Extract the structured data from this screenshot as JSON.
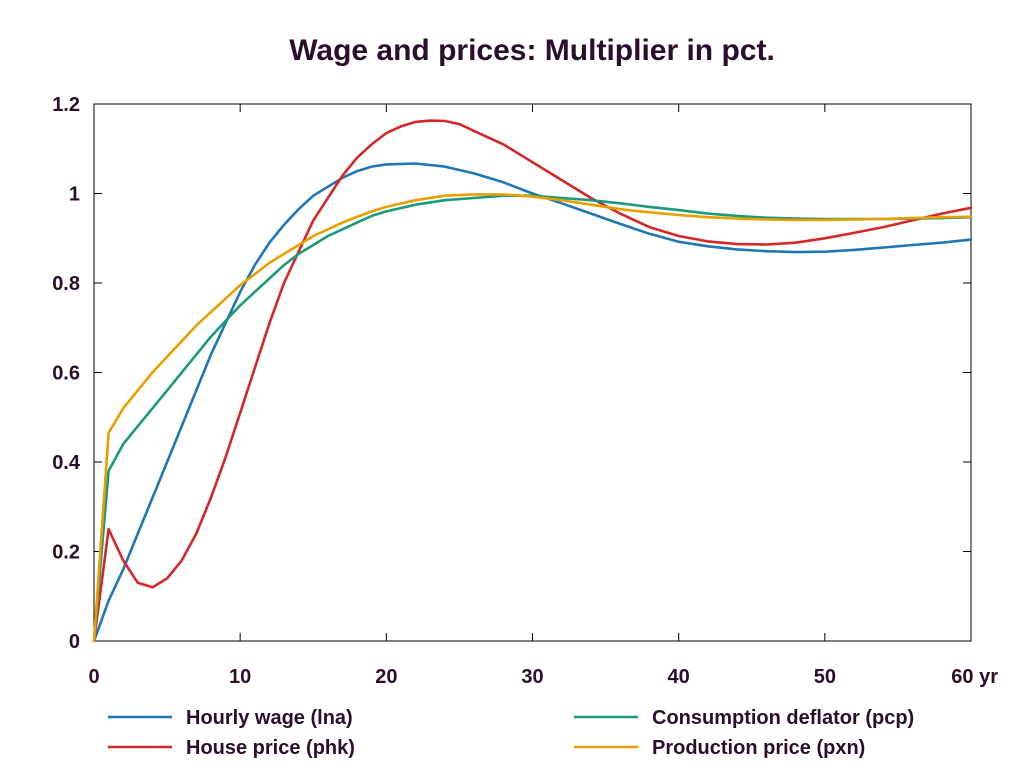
{
  "chart_data": {
    "type": "line",
    "title": "Wage and prices: Multiplier in pct.",
    "xlabel": "",
    "ylabel": "",
    "xlim": [
      0,
      60
    ],
    "ylim": [
      0,
      1.2
    ],
    "x_ticks": [
      {
        "value": 0,
        "label": "0"
      },
      {
        "value": 10,
        "label": "10"
      },
      {
        "value": 20,
        "label": "20"
      },
      {
        "value": 30,
        "label": "30"
      },
      {
        "value": 40,
        "label": "40"
      },
      {
        "value": 50,
        "label": "50"
      },
      {
        "value": 60,
        "label": "60 yr"
      }
    ],
    "y_ticks": [
      {
        "value": 0,
        "label": "0"
      },
      {
        "value": 0.2,
        "label": "0.2"
      },
      {
        "value": 0.4,
        "label": "0.4"
      },
      {
        "value": 0.6,
        "label": "0.6"
      },
      {
        "value": 0.8,
        "label": "0.8"
      },
      {
        "value": 1.0,
        "label": "1"
      },
      {
        "value": 1.2,
        "label": "1.2"
      }
    ],
    "grid": false,
    "legend": "bottom",
    "series": [
      {
        "name": "Hourly wage (lna)",
        "color": "#1f77b4",
        "x": [
          0,
          1,
          2,
          3,
          4,
          5,
          6,
          7,
          8,
          9,
          10,
          11,
          12,
          13,
          14,
          15,
          16,
          17,
          18,
          19,
          20,
          22,
          24,
          26,
          28,
          30,
          32,
          34,
          36,
          38,
          40,
          42,
          44,
          46,
          48,
          50,
          52,
          54,
          56,
          58,
          60
        ],
        "values": [
          0,
          0.09,
          0.16,
          0.24,
          0.32,
          0.4,
          0.48,
          0.56,
          0.64,
          0.71,
          0.78,
          0.84,
          0.89,
          0.93,
          0.965,
          0.995,
          1.015,
          1.035,
          1.05,
          1.06,
          1.065,
          1.067,
          1.06,
          1.045,
          1.025,
          1.0,
          0.978,
          0.955,
          0.932,
          0.91,
          0.892,
          0.882,
          0.875,
          0.871,
          0.869,
          0.87,
          0.874,
          0.879,
          0.885,
          0.89,
          0.897
        ]
      },
      {
        "name": "House price (phk)",
        "color": "#d62728",
        "x": [
          0,
          1,
          2,
          3,
          4,
          5,
          6,
          7,
          8,
          9,
          10,
          11,
          12,
          13,
          14,
          15,
          16,
          17,
          18,
          19,
          20,
          21,
          22,
          23,
          24,
          25,
          26,
          28,
          30,
          32,
          34,
          36,
          38,
          40,
          42,
          44,
          46,
          48,
          50,
          52,
          54,
          56,
          58,
          60
        ],
        "values": [
          0,
          0.25,
          0.18,
          0.13,
          0.12,
          0.14,
          0.18,
          0.24,
          0.32,
          0.41,
          0.51,
          0.61,
          0.71,
          0.8,
          0.87,
          0.94,
          0.99,
          1.04,
          1.08,
          1.11,
          1.135,
          1.15,
          1.16,
          1.163,
          1.162,
          1.155,
          1.14,
          1.11,
          1.07,
          1.03,
          0.99,
          0.955,
          0.925,
          0.905,
          0.893,
          0.887,
          0.886,
          0.89,
          0.9,
          0.912,
          0.925,
          0.94,
          0.955,
          0.968
        ]
      },
      {
        "name": "Consumption deflator (pcp)",
        "color": "#1a9a7a",
        "x": [
          0,
          1,
          2,
          3,
          4,
          5,
          6,
          7,
          8,
          9,
          10,
          11,
          12,
          13,
          14,
          15,
          16,
          17,
          18,
          19,
          20,
          22,
          24,
          26,
          28,
          30,
          32,
          34,
          36,
          38,
          40,
          42,
          44,
          46,
          48,
          50,
          52,
          54,
          56,
          58,
          60
        ],
        "values": [
          0,
          0.38,
          0.44,
          0.48,
          0.52,
          0.56,
          0.6,
          0.64,
          0.68,
          0.715,
          0.75,
          0.78,
          0.81,
          0.84,
          0.865,
          0.885,
          0.905,
          0.92,
          0.935,
          0.95,
          0.96,
          0.975,
          0.985,
          0.99,
          0.995,
          0.995,
          0.99,
          0.985,
          0.978,
          0.97,
          0.963,
          0.955,
          0.95,
          0.946,
          0.944,
          0.943,
          0.943,
          0.943,
          0.944,
          0.945,
          0.947
        ]
      },
      {
        "name": "Production price (pxn)",
        "color": "#e8a000",
        "x": [
          0,
          1,
          2,
          3,
          4,
          5,
          6,
          7,
          8,
          9,
          10,
          11,
          12,
          13,
          14,
          15,
          16,
          17,
          18,
          19,
          20,
          22,
          24,
          26,
          28,
          30,
          32,
          34,
          36,
          38,
          40,
          42,
          44,
          46,
          48,
          50,
          52,
          54,
          56,
          58,
          60
        ],
        "values": [
          0,
          0.465,
          0.52,
          0.56,
          0.6,
          0.635,
          0.67,
          0.705,
          0.735,
          0.765,
          0.795,
          0.82,
          0.845,
          0.865,
          0.885,
          0.905,
          0.92,
          0.935,
          0.948,
          0.96,
          0.97,
          0.985,
          0.995,
          0.998,
          0.998,
          0.993,
          0.985,
          0.975,
          0.965,
          0.958,
          0.952,
          0.947,
          0.944,
          0.942,
          0.941,
          0.941,
          0.942,
          0.943,
          0.945,
          0.947,
          0.948
        ]
      }
    ]
  }
}
